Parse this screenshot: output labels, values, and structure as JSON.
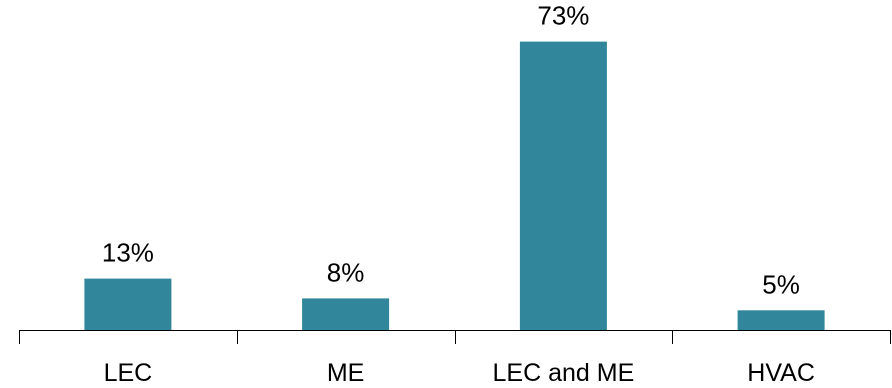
{
  "chart_data": {
    "type": "bar",
    "title": "",
    "xlabel": "",
    "ylabel": "",
    "categories": [
      "LEC",
      "ME",
      "LEC and ME",
      "HVAC"
    ],
    "values": [
      13,
      8,
      73,
      5
    ],
    "data_labels": [
      "13%",
      "8%",
      "73%",
      "5%"
    ],
    "ylim": [
      0,
      80
    ],
    "grid": false,
    "legend": "none",
    "bar_color": "#31869b"
  }
}
